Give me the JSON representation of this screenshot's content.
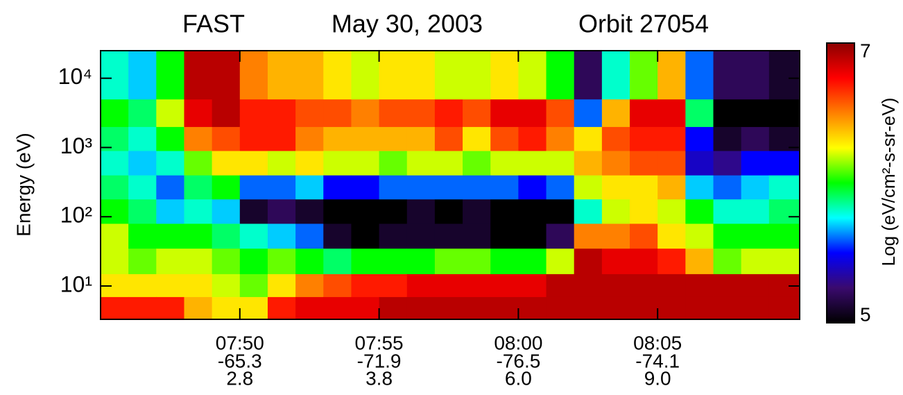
{
  "chart_data": {
    "type": "spectrogram",
    "title": "FAST",
    "date": "May 30, 2003",
    "orbit": "Orbit 27054",
    "ylabel": "Energy (eV)",
    "colorbar_label": "Log (eV/cm²-s-sr-eV)",
    "log_y": true,
    "xlim": [
      465,
      490.1
    ],
    "ylim": [
      3.3,
      25000
    ],
    "xticks": [
      {
        "value": 470,
        "label": "07:50"
      },
      {
        "value": 475,
        "label": "07:55"
      },
      {
        "value": 480,
        "label": "08:00"
      },
      {
        "value": 485,
        "label": "08:05"
      }
    ],
    "xtick_rows": [
      [
        "-65.3",
        "2.8"
      ],
      [
        "-71.9",
        "3.8"
      ],
      [
        "-76.5",
        "6.0"
      ],
      [
        "-74.1",
        "9.0"
      ]
    ],
    "yticks": [
      {
        "value": 10,
        "label": "10¹"
      },
      {
        "value": 100,
        "label": "10²"
      },
      {
        "value": 1000,
        "label": "10³"
      },
      {
        "value": 10000,
        "label": "10⁴"
      }
    ],
    "clim": [
      5,
      7
    ],
    "cticks": [
      5,
      7
    ],
    "colorscale": [
      "#000000",
      "#3a0a6e",
      "#0000ff",
      "#00ffff",
      "#00ff00",
      "#ffff00",
      "#ff8000",
      "#ff0000",
      "#8b0000"
    ],
    "time_bins": [
      465,
      466,
      467,
      468,
      469,
      470,
      471,
      472,
      473,
      474,
      475,
      476,
      477,
      478,
      479,
      480,
      481,
      482,
      483,
      484,
      485,
      486,
      487,
      488,
      489,
      490.1
    ],
    "energy_bins": [
      3.3,
      7,
      15,
      35,
      80,
      180,
      400,
      900,
      2000,
      5000,
      25000
    ],
    "z": [
      [
        6.7,
        6.3,
        6.2,
        6.2,
        6.0,
        5.9,
        5.8,
        5.9,
        6.0,
        5.8
      ],
      [
        6.7,
        6.3,
        6.1,
        6.0,
        5.9,
        5.8,
        5.7,
        5.8,
        5.9,
        5.7
      ],
      [
        6.7,
        6.3,
        6.2,
        6.0,
        5.7,
        5.6,
        5.8,
        6.0,
        6.2,
        6.0
      ],
      [
        6.4,
        6.3,
        6.2,
        6.0,
        5.8,
        5.9,
        6.1,
        6.5,
        6.8,
        6.9
      ],
      [
        6.3,
        6.2,
        6.1,
        5.9,
        5.7,
        6.0,
        6.3,
        6.6,
        6.9,
        6.9
      ],
      [
        6.3,
        6.1,
        6.0,
        5.8,
        5.1,
        5.6,
        6.3,
        6.7,
        6.7,
        6.5
      ],
      [
        6.7,
        6.3,
        6.1,
        5.7,
        5.2,
        5.6,
        6.2,
        6.7,
        6.7,
        6.4
      ],
      [
        6.8,
        6.5,
        6.0,
        5.6,
        5.1,
        5.7,
        6.3,
        6.5,
        6.6,
        6.4
      ],
      [
        6.8,
        6.6,
        5.9,
        5.1,
        5.0,
        5.5,
        6.2,
        6.4,
        6.6,
        6.3
      ],
      [
        6.8,
        6.7,
        6.0,
        5.0,
        5.0,
        5.5,
        6.2,
        6.4,
        6.5,
        6.2
      ],
      [
        6.9,
        6.7,
        6.0,
        5.1,
        5.0,
        5.6,
        6.1,
        6.4,
        6.6,
        6.3
      ],
      [
        6.9,
        6.8,
        6.0,
        5.1,
        5.1,
        5.6,
        6.2,
        6.4,
        6.6,
        6.3
      ],
      [
        6.9,
        6.8,
        6.1,
        5.1,
        5.0,
        5.6,
        6.2,
        6.6,
        6.7,
        6.2
      ],
      [
        6.9,
        6.8,
        6.1,
        5.1,
        5.1,
        5.6,
        6.1,
        6.3,
        6.6,
        6.2
      ],
      [
        6.9,
        6.8,
        6.0,
        5.0,
        5.0,
        5.6,
        6.2,
        6.6,
        6.8,
        6.3
      ],
      [
        6.9,
        6.8,
        6.0,
        5.0,
        5.0,
        5.5,
        6.2,
        6.7,
        6.8,
        6.2
      ],
      [
        6.9,
        6.9,
        6.2,
        5.2,
        5.0,
        5.6,
        6.2,
        6.5,
        6.6,
        6.0
      ],
      [
        6.9,
        6.9,
        6.9,
        6.5,
        5.8,
        6.2,
        6.4,
        6.3,
        5.6,
        5.2
      ],
      [
        6.9,
        6.9,
        6.8,
        6.5,
        6.2,
        6.3,
        6.5,
        6.6,
        6.4,
        5.8
      ],
      [
        6.9,
        6.9,
        6.8,
        6.6,
        6.3,
        6.3,
        6.6,
        6.7,
        6.8,
        6.1
      ],
      [
        6.9,
        6.9,
        6.7,
        6.3,
        6.2,
        6.4,
        6.6,
        6.7,
        6.8,
        6.4
      ],
      [
        6.9,
        6.9,
        6.4,
        6.2,
        6.0,
        5.7,
        5.4,
        5.5,
        5.9,
        5.6
      ],
      [
        6.9,
        6.9,
        6.1,
        6.0,
        5.8,
        5.6,
        5.3,
        5.1,
        5.0,
        5.2
      ],
      [
        6.9,
        6.9,
        6.2,
        6.0,
        5.8,
        5.7,
        5.5,
        5.2,
        5.0,
        5.2
      ],
      [
        6.9,
        6.9,
        6.2,
        6.0,
        5.9,
        5.8,
        5.5,
        5.1,
        5.0,
        5.1
      ]
    ]
  }
}
